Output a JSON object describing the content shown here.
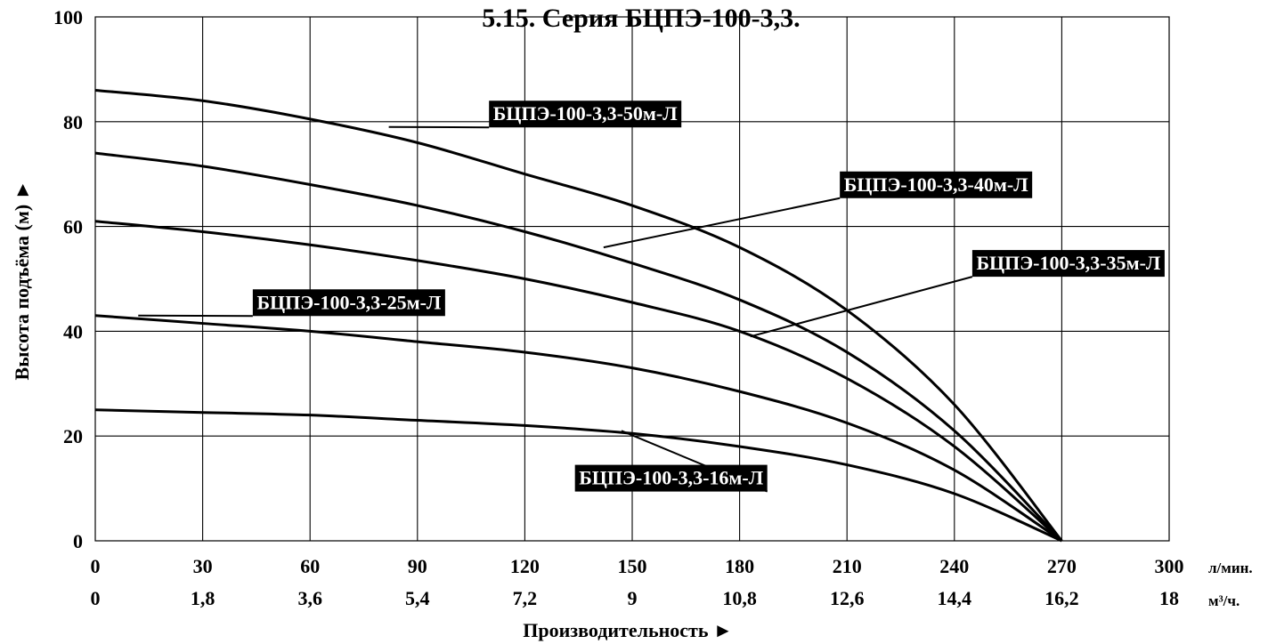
{
  "chart_data": {
    "type": "line",
    "title": "5.15. Серия БЦПЭ-100-3,3.",
    "xlabel": "Производительность ►",
    "ylabel": "Высота подъёма (м) ►",
    "xlim": [
      0,
      300
    ],
    "ylim": [
      0,
      100
    ],
    "grid": true,
    "x_ticks_primary": [
      "0",
      "30",
      "60",
      "90",
      "120",
      "150",
      "180",
      "210",
      "240",
      "270",
      "300"
    ],
    "x_ticks_primary_values": [
      0,
      30,
      60,
      90,
      120,
      150,
      180,
      210,
      240,
      270,
      300
    ],
    "x_unit_primary": "л/мин.",
    "x_ticks_secondary": [
      "0",
      "1,8",
      "3,6",
      "5,4",
      "7,2",
      "9",
      "10,8",
      "12,6",
      "14,4",
      "16,2",
      "18"
    ],
    "x_unit_secondary": "м³/ч.",
    "y_ticks": [
      "0",
      "20",
      "40",
      "60",
      "80",
      "100"
    ],
    "y_ticks_values": [
      0,
      20,
      40,
      60,
      80,
      100
    ],
    "x": [
      0,
      30,
      60,
      90,
      120,
      150,
      180,
      210,
      240,
      270
    ],
    "series": [
      {
        "name": "БЦПЭ-100-3,3-50м-Л",
        "values": [
          86,
          84,
          80.5,
          76,
          70,
          64,
          56,
          44,
          26,
          0
        ]
      },
      {
        "name": "БЦПЭ-100-3,3-40м-Л",
        "values": [
          74,
          71.5,
          68,
          64,
          59,
          53,
          46,
          36,
          21,
          0
        ]
      },
      {
        "name": "БЦПЭ-100-3,3-35м-Л",
        "values": [
          61,
          59,
          56.5,
          53.5,
          50,
          45.5,
          40,
          31,
          18,
          0
        ]
      },
      {
        "name": "БЦПЭ-100-3,3-25м-Л",
        "values": [
          43,
          41.5,
          40,
          38,
          36,
          33,
          28.5,
          22.5,
          13.5,
          0
        ]
      },
      {
        "name": "БЦПЭ-100-3,3-16м-Л",
        "values": [
          25,
          24.5,
          24,
          23,
          22,
          20.5,
          18,
          14.5,
          9,
          0
        ]
      }
    ],
    "labels": [
      {
        "series": 0,
        "text": "БЦПЭ-100-3,3-50м-Л",
        "anchor_x": 82,
        "anchor_y": 79,
        "box_x": 110,
        "box_y": 84
      },
      {
        "series": 1,
        "text": "БЦПЭ-100-3,3-40м-Л",
        "anchor_x": 142,
        "anchor_y": 56,
        "box_x": 208,
        "box_y": 70.5
      },
      {
        "series": 2,
        "text": "БЦПЭ-100-3,3-35м-Л",
        "anchor_x": 183,
        "anchor_y": 39,
        "box_x": 245,
        "box_y": 55.5
      },
      {
        "series": 3,
        "text": "БЦПЭ-100-3,3-25м-Л",
        "anchor_x": 12,
        "anchor_y": 43,
        "box_x": 44,
        "box_y": 48
      },
      {
        "series": 4,
        "text": "БЦПЭ-100-3,3-16м-Л",
        "anchor_x": 147,
        "anchor_y": 21,
        "box_x": 134,
        "box_y": 14.5
      }
    ]
  }
}
